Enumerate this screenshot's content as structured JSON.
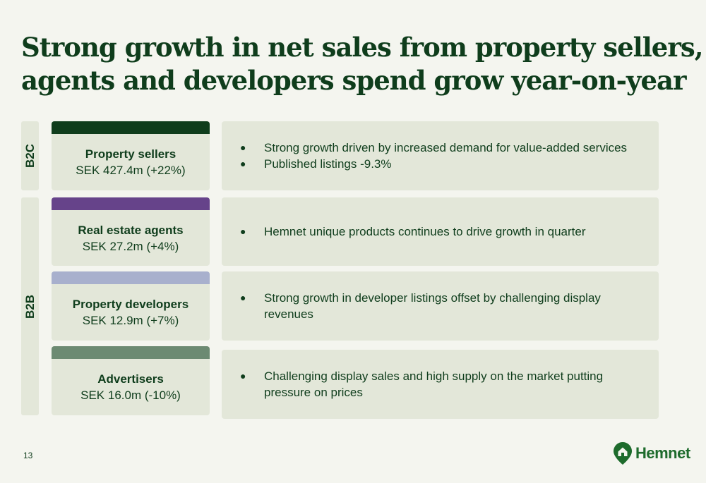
{
  "title": {
    "line1": "Strong growth in net sales from property sellers,",
    "line2": "agents and developers spend grow year-on-year"
  },
  "segments": [
    {
      "label": "B2C"
    },
    {
      "label": "B2B"
    }
  ],
  "rows": [
    {
      "name": "Property sellers",
      "value": "SEK 427.4m (+22%)",
      "bar_color": "#0f3d1c",
      "bullets": [
        "Strong growth driven by increased demand for value-added services",
        "Published listings -9.3%"
      ]
    },
    {
      "name": "Real estate agents",
      "value": "SEK 27.2m (+4%)",
      "bar_color": "#66438a",
      "bullets": [
        "Hemnet unique products continues to drive growth in quarter"
      ]
    },
    {
      "name": "Property developers",
      "value": "SEK 12.9m (+7%)",
      "bar_color": "#a8b0cd",
      "bullets": [
        "Strong growth in developer listings offset by challenging display revenues"
      ]
    },
    {
      "name": "Advertisers",
      "value": "SEK 16.0m (-10%)",
      "bar_color": "#6c8a72",
      "bullets": [
        "Challenging display sales and high supply on the market putting pressure on prices"
      ]
    }
  ],
  "footer": {
    "page_number": "13",
    "logo_text": "Hemnet",
    "logo_icon": "house-pin-icon",
    "logo_color": "#1d6b2c"
  }
}
